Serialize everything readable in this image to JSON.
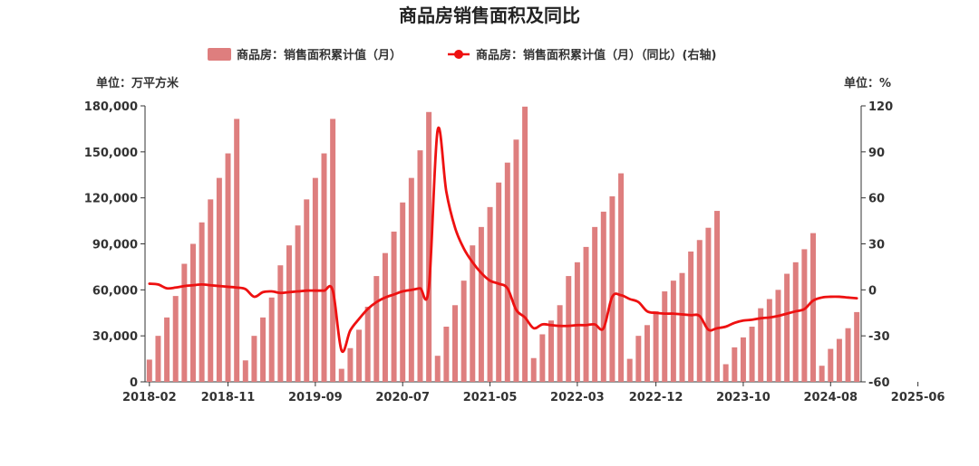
{
  "chart_data": {
    "type": "bar+line",
    "title": "商品房销售面积及同比",
    "left_unit": "单位：万平方米",
    "right_unit": "单位：%",
    "legend": [
      {
        "name": "商品房：销售面积累计值（月）",
        "kind": "bar",
        "color": "#de7e7e"
      },
      {
        "name": "商品房：销售面积累计值（月）（同比）(右轴)",
        "kind": "line",
        "color": "#ee1111"
      }
    ],
    "y_left": {
      "min": 0,
      "max": 180000,
      "ticks": [
        "0",
        "30,000",
        "60,000",
        "90,000",
        "120,000",
        "150,000",
        "180,000"
      ]
    },
    "y_right": {
      "min": -60,
      "max": 120,
      "ticks": [
        "-60",
        "-30",
        "0",
        "30",
        "60",
        "90",
        "120"
      ]
    },
    "x_tick_labels": [
      "2018-02",
      "2018-11",
      "2019-09",
      "2020-07",
      "2021-05",
      "2022-03",
      "2022-12",
      "2023-10",
      "2024-08",
      "2025-06"
    ],
    "x_tick_indices": [
      0,
      9,
      19,
      29,
      39,
      49,
      58,
      68,
      78,
      88
    ],
    "bars": {
      "dates": [
        "2018-02",
        "2018-03",
        "2018-04",
        "2018-05",
        "2018-06",
        "2018-07",
        "2018-08",
        "2018-09",
        "2018-10",
        "2018-11",
        "2018-12",
        "2019-02",
        "2019-03",
        "2019-04",
        "2019-05",
        "2019-06",
        "2019-07",
        "2019-08",
        "2019-09",
        "2019-10",
        "2019-11",
        "2019-12",
        "2020-02",
        "2020-03",
        "2020-04",
        "2020-05",
        "2020-06",
        "2020-07",
        "2020-08",
        "2020-09",
        "2020-10",
        "2020-11",
        "2020-12",
        "2021-02",
        "2021-03",
        "2021-04",
        "2021-05",
        "2021-06",
        "2021-07",
        "2021-08",
        "2021-09",
        "2021-10",
        "2021-11",
        "2021-12",
        "2022-02",
        "2022-03",
        "2022-04",
        "2022-05",
        "2022-06",
        "2022-07",
        "2022-08",
        "2022-09",
        "2022-10",
        "2022-11",
        "2022-12",
        "2023-02",
        "2023-03",
        "2023-04",
        "2023-05",
        "2023-06",
        "2023-07",
        "2023-08",
        "2023-09",
        "2023-10",
        "2023-11",
        "2023-12",
        "2024-02",
        "2024-03",
        "2024-04",
        "2024-05",
        "2024-06",
        "2024-07",
        "2024-08",
        "2024-09",
        "2024-10",
        "2024-11",
        "2024-12",
        "2025-02",
        "2025-03",
        "2025-04",
        "2025-05",
        "2025-06"
      ],
      "values": [
        14500,
        30000,
        42000,
        56000,
        77000,
        90000,
        104000,
        119000,
        133000,
        149000,
        171500,
        14000,
        30000,
        42000,
        55000,
        76000,
        89000,
        102000,
        119000,
        133000,
        149000,
        171500,
        8500,
        22000,
        34000,
        49000,
        69000,
        84000,
        98000,
        117000,
        133000,
        151000,
        176000,
        17000,
        36000,
        50000,
        66000,
        89000,
        101000,
        114000,
        130000,
        143000,
        158000,
        179500,
        15500,
        31000,
        40000,
        50000,
        69000,
        78000,
        88000,
        101000,
        111000,
        121000,
        136000,
        15000,
        30000,
        37000,
        46000,
        59000,
        66000,
        71000,
        85000,
        92500,
        100500,
        111500,
        11500,
        22500,
        29000,
        36000,
        48000,
        54000,
        60000,
        70500,
        78000,
        86500,
        97000,
        10500,
        21500,
        28000,
        35000,
        45500
      ]
    },
    "line": {
      "values": [
        4,
        3.5,
        1,
        1.5,
        2.5,
        3,
        3.5,
        3,
        2.5,
        2,
        1.5,
        0.5,
        -4.5,
        -1.5,
        -1,
        -2,
        -1.5,
        -1,
        -0.5,
        -0.5,
        -0.5,
        -0.5,
        -39.5,
        -26.5,
        -19,
        -12.5,
        -8,
        -5,
        -3,
        -1,
        0,
        1,
        1.5,
        104,
        64,
        40.5,
        27,
        18,
        11,
        6,
        4,
        1,
        -13,
        -18,
        -25,
        -22.5,
        -23,
        -23.5,
        -23.5,
        -23,
        -23,
        -22.5,
        -25,
        -4.5,
        -3.5,
        -6,
        -8,
        -14,
        -15,
        -15.5,
        -15.5,
        -16,
        -16.5,
        -17,
        -26,
        -25,
        -24,
        -21.5,
        -20,
        -19.5,
        -18.5,
        -18,
        -17,
        -15.5,
        -14,
        -12.5,
        -7,
        -5,
        -4.5,
        -4.5,
        -5,
        -5.5
      ]
    }
  }
}
